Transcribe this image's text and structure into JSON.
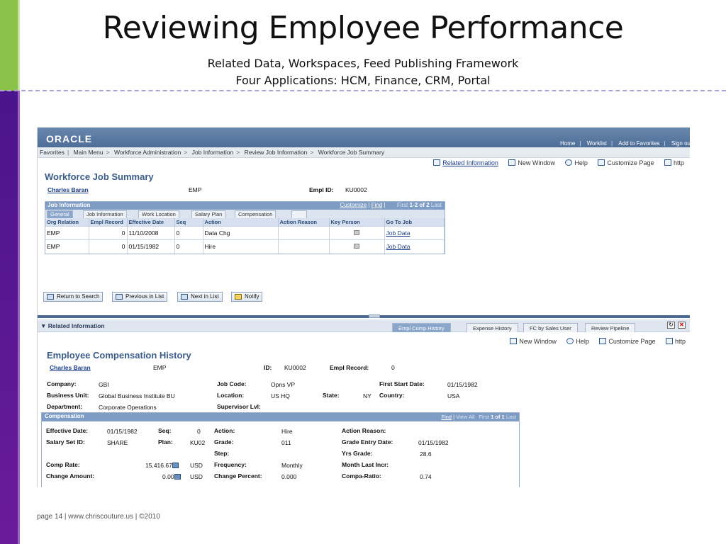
{
  "slide": {
    "title": "Reviewing Employee Performance",
    "subtitle1": "Related Data, Workspaces, Feed Publishing Framework",
    "subtitle2": "Four Applications: HCM, Finance, CRM, Portal",
    "footer": "page 14 | www.chriscouture.us | ©2010"
  },
  "app": {
    "logo": "ORACLE",
    "top_links": [
      "Home",
      "Worklist",
      "Add to Favorites",
      "Sign ou"
    ],
    "breadcrumb": [
      "Favorites",
      "Main Menu",
      "Workforce Administration",
      "Job Information",
      "Review Job Information",
      "Workforce Job Summary"
    ],
    "page_links": {
      "related": "Related Information",
      "new_window": "New Window",
      "help": "Help",
      "customize": "Customize Page",
      "http": "http"
    }
  },
  "job_summary": {
    "title": "Workforce Job Summary",
    "employee_name": "Charles Baran",
    "emp": "EMP",
    "empl_id_label": "Empl ID:",
    "empl_id": "KU0002",
    "grid": {
      "title": "Job Information",
      "tools": {
        "customize": "Customize",
        "find": "Find",
        "first": "First",
        "range": "1-2 of 2",
        "last": "Last"
      },
      "tabs": [
        "General",
        "Job Information",
        "Work Location",
        "Salary Plan",
        "Compensation"
      ],
      "columns": [
        "Org Relation",
        "Empl Record",
        "Effective Date",
        "Seq",
        "Action",
        "Action Reason",
        "Key Person",
        "Go To Job"
      ],
      "rows": [
        {
          "org": "EMP",
          "record": "0",
          "date": "11/10/2008",
          "seq": "0",
          "action": "Data Chg",
          "reason": "",
          "link": "Job Data"
        },
        {
          "org": "EMP",
          "record": "0",
          "date": "01/15/1982",
          "seq": "0",
          "action": "Hire",
          "reason": "",
          "link": "Job Data"
        }
      ]
    },
    "buttons": {
      "return": "Return to Search",
      "previous": "Previous in List",
      "next": "Next in List",
      "notify": "Notify"
    }
  },
  "related": {
    "label": "Related Information",
    "tabs": [
      "Empl Comp History",
      "Expense History",
      "FC by Sales User",
      "Review Pipeline"
    ],
    "page_links": {
      "new_window": "New Window",
      "help": "Help",
      "customize": "Customize Page",
      "http": "http"
    }
  },
  "comp_history": {
    "title": "Employee Compensation History",
    "employee_name": "Charles Baran",
    "emp": "EMP",
    "id_label": "ID:",
    "id": "KU0002",
    "empl_record_label": "Empl Record:",
    "empl_record": "0",
    "company_label": "Company:",
    "company": "GBI",
    "business_unit_label": "Business Unit:",
    "business_unit": "Global Business Institute BU",
    "department_label": "Department:",
    "department": "Corporate Operations",
    "job_code_label": "Job Code:",
    "job_code": "Opns VP",
    "location_label": "Location:",
    "location": "US HQ",
    "state_label": "State:",
    "state": "NY",
    "supervisor_label": "Supervisor Lvl:",
    "first_start_label": "First Start Date:",
    "first_start": "01/15/1982",
    "country_label": "Country:",
    "country": "USA",
    "comp": {
      "title": "Compensation",
      "tools": {
        "find": "Find",
        "view_all": "View All",
        "first": "First",
        "range": "1 of 1",
        "last": "Last"
      },
      "effective_date_label": "Effective Date:",
      "effective_date": "01/15/1982",
      "seq_label": "Seq:",
      "seq": "0",
      "action_label": "Action:",
      "action": "Hire",
      "action_reason_label": "Action Reason:",
      "salary_set_label": "Salary Set ID:",
      "salary_set": "SHARE",
      "plan_label": "Plan:",
      "plan": "KU02",
      "grade_label": "Grade:",
      "grade": "011",
      "grade_entry_label": "Grade Entry Date:",
      "grade_entry": "01/15/1982",
      "step_label": "Step:",
      "yrs_grade_label": "Yrs Grade:",
      "yrs_grade": "28.6",
      "comp_rate_label": "Comp Rate:",
      "comp_rate": "15,416.67",
      "comp_rate_cur": "USD",
      "frequency_label": "Frequency:",
      "frequency": "Monthly",
      "month_last_label": "Month Last Incr:",
      "change_amount_label": "Change Amount:",
      "change_amount": "0.00",
      "change_amount_cur": "USD",
      "change_percent_label": "Change Percent:",
      "change_percent": "0.000",
      "compa_ratio_label": "Compa-Ratio:",
      "compa_ratio": "0.74"
    }
  }
}
